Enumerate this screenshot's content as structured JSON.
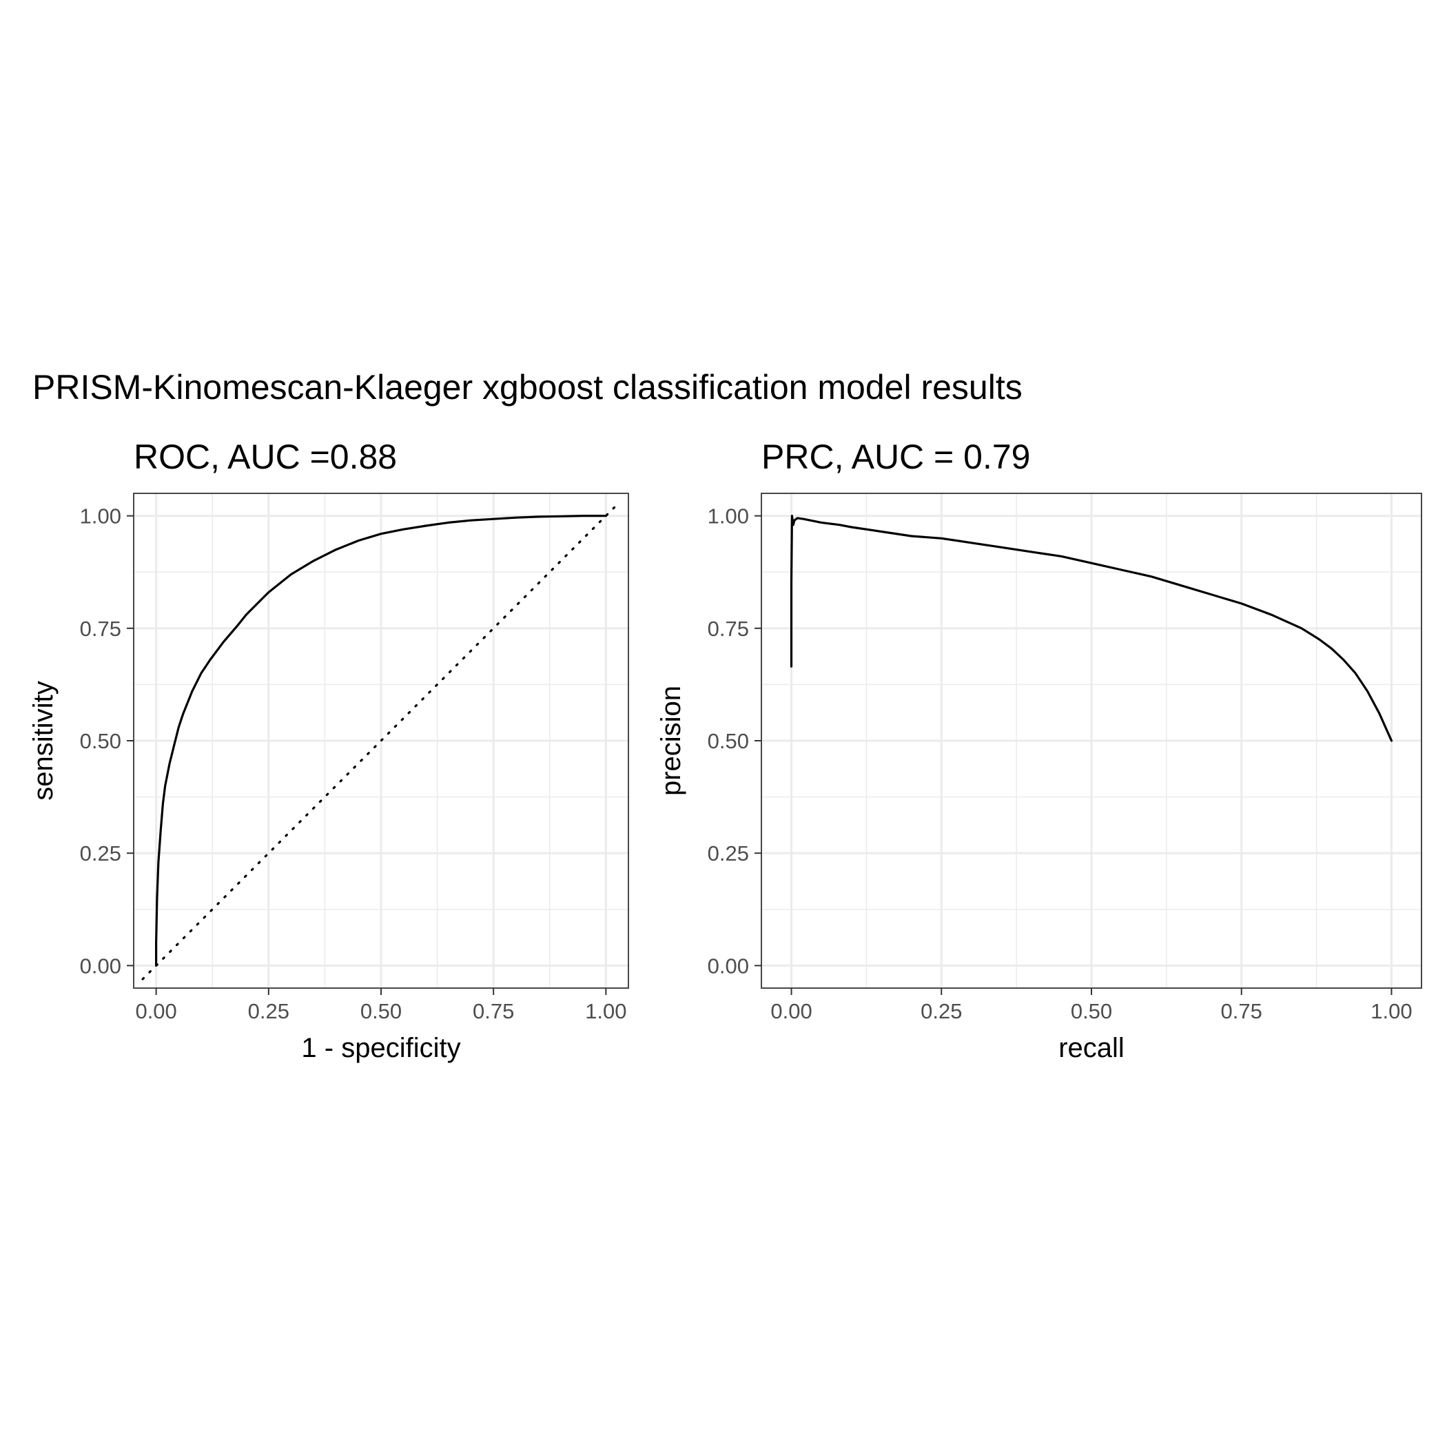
{
  "figure": {
    "title": "PRISM-Kinomescan-Klaeger xgboost classification model results"
  },
  "chart_data": [
    {
      "type": "line",
      "title": "ROC, AUC =0.88",
      "xlabel": "1 - specificity",
      "ylabel": "sensitivity",
      "xlim": [
        -0.05,
        1.05
      ],
      "ylim": [
        -0.05,
        1.05
      ],
      "xticks": [
        "0.00",
        "0.25",
        "0.50",
        "0.75",
        "1.00"
      ],
      "yticks": [
        "0.00",
        "0.25",
        "0.50",
        "0.75",
        "1.00"
      ],
      "grid": true,
      "reference_line": {
        "style": "dotted",
        "x": [
          -0.03,
          1.03
        ],
        "y": [
          -0.03,
          1.03
        ]
      },
      "series": [
        {
          "x": [
            0.0,
            0.0,
            0.002,
            0.005,
            0.01,
            0.015,
            0.02,
            0.03,
            0.04,
            0.05,
            0.06,
            0.08,
            0.1,
            0.12,
            0.15,
            0.18,
            0.2,
            0.25,
            0.3,
            0.35,
            0.4,
            0.45,
            0.5,
            0.55,
            0.6,
            0.65,
            0.7,
            0.75,
            0.8,
            0.85,
            0.9,
            0.95,
            1.0
          ],
          "y": [
            0.0,
            0.05,
            0.15,
            0.23,
            0.3,
            0.36,
            0.4,
            0.45,
            0.49,
            0.53,
            0.56,
            0.61,
            0.65,
            0.68,
            0.72,
            0.755,
            0.78,
            0.83,
            0.87,
            0.9,
            0.925,
            0.945,
            0.96,
            0.97,
            0.978,
            0.985,
            0.99,
            0.993,
            0.996,
            0.998,
            0.999,
            1.0,
            1.0
          ]
        }
      ]
    },
    {
      "type": "line",
      "title": "PRC, AUC = 0.79",
      "xlabel": "recall",
      "ylabel": "precision",
      "xlim": [
        -0.05,
        1.05
      ],
      "ylim": [
        -0.05,
        1.05
      ],
      "xticks": [
        "0.00",
        "0.25",
        "0.50",
        "0.75",
        "1.00"
      ],
      "yticks": [
        "0.00",
        "0.25",
        "0.50",
        "0.75",
        "1.00"
      ],
      "grid": true,
      "series": [
        {
          "x": [
            0.0,
            0.0,
            0.001,
            0.003,
            0.005,
            0.01,
            0.02,
            0.05,
            0.08,
            0.1,
            0.15,
            0.2,
            0.25,
            0.3,
            0.35,
            0.4,
            0.45,
            0.5,
            0.55,
            0.6,
            0.65,
            0.7,
            0.75,
            0.8,
            0.85,
            0.88,
            0.9,
            0.92,
            0.94,
            0.96,
            0.97,
            0.98,
            0.99,
            0.995,
            1.0,
            1.0
          ],
          "y": [
            0.665,
            0.85,
            1.0,
            0.98,
            0.99,
            0.995,
            0.993,
            0.985,
            0.98,
            0.975,
            0.965,
            0.955,
            0.95,
            0.94,
            0.93,
            0.92,
            0.91,
            0.895,
            0.88,
            0.865,
            0.845,
            0.825,
            0.805,
            0.78,
            0.75,
            0.725,
            0.705,
            0.68,
            0.65,
            0.61,
            0.585,
            0.56,
            0.53,
            0.515,
            0.5,
            0.5
          ]
        }
      ]
    }
  ]
}
